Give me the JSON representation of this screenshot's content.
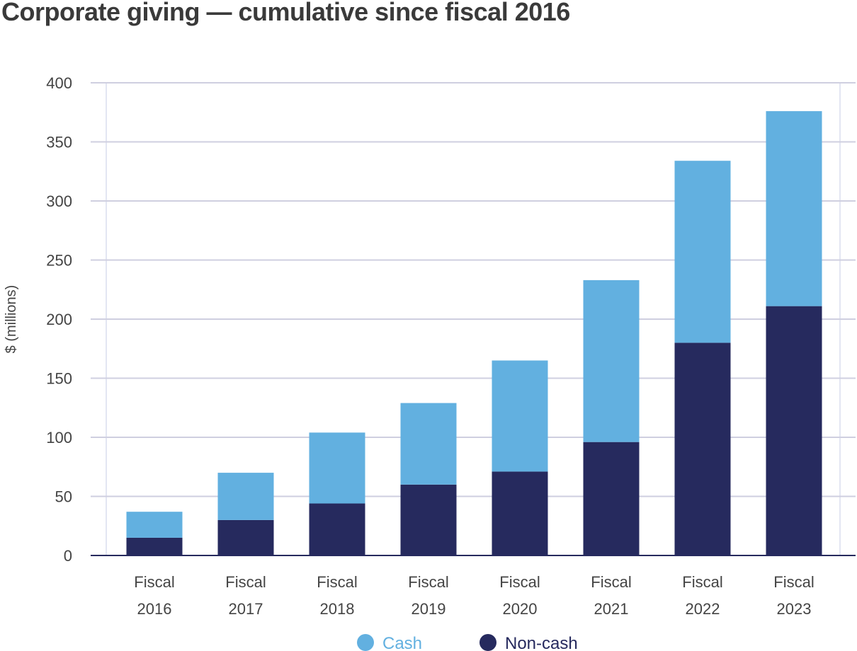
{
  "chart_data": {
    "type": "bar",
    "stacked": true,
    "title": "Corporate giving — cumulative since fiscal 2016",
    "xlabel": "",
    "ylabel": "$ (millions)",
    "ylim": [
      0,
      400
    ],
    "yticks": [
      0,
      50,
      100,
      150,
      200,
      250,
      300,
      350,
      400
    ],
    "grid": true,
    "legend_position": "bottom",
    "categories": [
      [
        "Fiscal",
        "2016"
      ],
      [
        "Fiscal",
        "2017"
      ],
      [
        "Fiscal",
        "2018"
      ],
      [
        "Fiscal",
        "2019"
      ],
      [
        "Fiscal",
        "2020"
      ],
      [
        "Fiscal",
        "2021"
      ],
      [
        "Fiscal",
        "2022"
      ],
      [
        "Fiscal",
        "2023"
      ]
    ],
    "series": [
      {
        "name": "Non-cash",
        "color": "#262a5e",
        "values": [
          15,
          30,
          44,
          60,
          71,
          96,
          180,
          211
        ]
      },
      {
        "name": "Cash",
        "color": "#62b0e0",
        "values": [
          22,
          40,
          60,
          69,
          94,
          137,
          154,
          165
        ]
      }
    ],
    "legend": [
      {
        "name": "Cash",
        "color": "#62b0e0"
      },
      {
        "name": "Non-cash",
        "color": "#262a5e"
      }
    ]
  }
}
